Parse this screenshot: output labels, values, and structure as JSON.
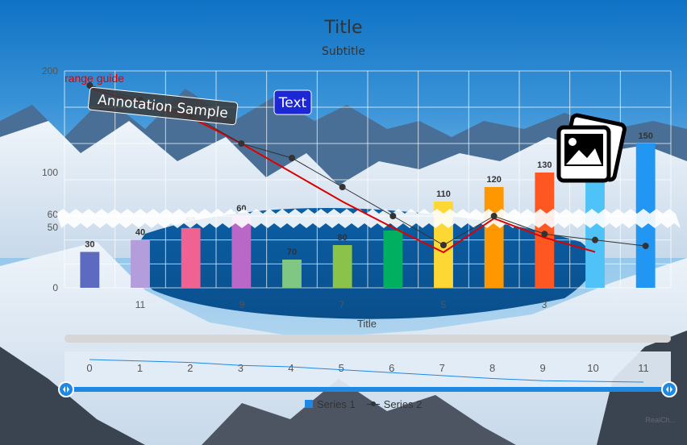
{
  "chart_data": {
    "type": "bar",
    "title": "Title",
    "subtitle": "Subtitle",
    "xlabel": "Title",
    "ylabel": "",
    "categories": [
      "0",
      "1",
      "2",
      "3",
      "4",
      "5",
      "6",
      "7",
      "8",
      "9",
      "10",
      "11"
    ],
    "axis_tick_labels": [
      "11",
      "9",
      "7",
      "5",
      "3"
    ],
    "ylim": [
      0,
      200
    ],
    "y_ticks": [
      "200",
      "100",
      "60",
      "50",
      "0"
    ],
    "axis_break": {
      "from": 60,
      "to": 100
    },
    "grid": true,
    "series": [
      {
        "name": "Series 1",
        "type": "bar",
        "values": [
          30,
          40,
          50,
          60,
          70,
          80,
          90,
          110,
          120,
          130,
          140,
          150
        ],
        "colors": [
          "#5c6bc0",
          "#b39ddb",
          "#f06292",
          "#ba68c8",
          "#81c784",
          "#8bc34a",
          "#00b060",
          "#fdd835",
          "#ff9800",
          "#ff5722",
          "#4fc3f7",
          "#2196f3"
        ]
      },
      {
        "name": "Series 2",
        "type": "line",
        "values": [
          190,
          180,
          170,
          150,
          140,
          120,
          100,
          80,
          60,
          45,
          40,
          35
        ],
        "color": "#333333"
      }
    ],
    "trend_line": {
      "color": "#dd0000",
      "values": [
        188,
        178,
        168,
        150,
        130,
        110,
        92,
        75,
        58,
        42,
        30
      ]
    },
    "range_guide_label": "range guide",
    "annotations": [
      {
        "text": "Annotation Sample",
        "style": "dark-rotated"
      },
      {
        "text": "Text",
        "style": "blue-box"
      }
    ],
    "navigator": {
      "labels": [
        "0",
        "1",
        "2",
        "3",
        "4",
        "5",
        "6",
        "7",
        "8",
        "9",
        "10",
        "11"
      ]
    },
    "legend": {
      "placement": "bottom-center",
      "items": [
        "Series 1",
        "Series 2"
      ]
    },
    "credits": "RealCh...",
    "colors": {
      "bar_label": "#333333",
      "axis_text": "#555555",
      "grid": "#ffffff",
      "navigator_handle": "#1e88e5"
    }
  }
}
